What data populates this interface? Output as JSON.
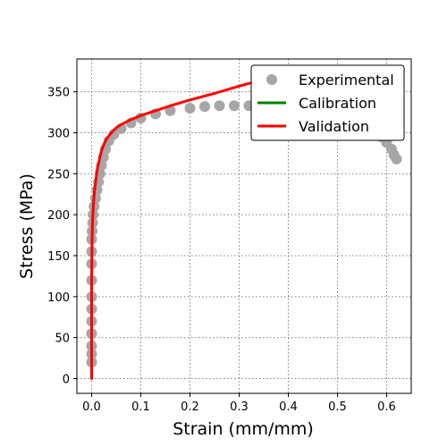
{
  "chart_data": {
    "type": "line",
    "title": "",
    "xlabel": "Strain (mm/mm)",
    "ylabel": "Stress (MPa)",
    "xlim": [
      -0.03,
      0.65
    ],
    "ylim": [
      -18,
      390
    ],
    "xticks": [
      0.0,
      0.1,
      0.2,
      0.3,
      0.4,
      0.5,
      0.6
    ],
    "xtick_labels": [
      "0.0",
      "0.1",
      "0.2",
      "0.3",
      "0.4",
      "0.5",
      "0.6"
    ],
    "yticks": [
      0,
      50,
      100,
      150,
      200,
      250,
      300,
      350
    ],
    "ytick_labels": [
      "0",
      "50",
      "100",
      "150",
      "200",
      "250",
      "300",
      "350"
    ],
    "grid": true,
    "legend_position": "top-right",
    "series": [
      {
        "name": "Experimental",
        "kind": "scatter",
        "color": "#a6a6a6",
        "x": [
          0.0,
          0.0,
          0.0,
          0.0,
          0.0,
          0.0,
          0.0,
          0.0,
          0.0,
          0.0,
          0.0,
          0.001,
          0.002,
          0.003,
          0.005,
          0.008,
          0.011,
          0.014,
          0.017,
          0.02,
          0.024,
          0.028,
          0.035,
          0.045,
          0.06,
          0.08,
          0.1,
          0.13,
          0.16,
          0.2,
          0.23,
          0.26,
          0.29,
          0.32,
          0.35,
          0.38,
          0.42,
          0.46,
          0.5,
          0.54,
          0.57,
          0.59,
          0.6,
          0.61,
          0.615,
          0.62
        ],
        "y": [
          20,
          30,
          40,
          55,
          70,
          85,
          100,
          120,
          140,
          155,
          170,
          180,
          190,
          200,
          210,
          220,
          230,
          240,
          250,
          260,
          270,
          280,
          290,
          298,
          305,
          312,
          318,
          323,
          327,
          330,
          332,
          333,
          333,
          333,
          332,
          331,
          330,
          328,
          325,
          318,
          305,
          295,
          288,
          280,
          273,
          268
        ]
      },
      {
        "name": "Calibration",
        "kind": "line",
        "color": "#008000",
        "x": [],
        "y": []
      },
      {
        "name": "Validation",
        "kind": "line",
        "color": "#ff0000",
        "x": [
          0.0,
          0.0,
          0.0,
          0.001,
          0.002,
          0.004,
          0.006,
          0.009,
          0.012,
          0.016,
          0.02,
          0.025,
          0.03,
          0.04,
          0.05,
          0.06,
          0.08,
          0.1,
          0.13,
          0.16,
          0.2,
          0.25,
          0.3,
          0.35,
          0.38
        ],
        "y": [
          0,
          60,
          120,
          170,
          195,
          215,
          230,
          245,
          257,
          268,
          278,
          286,
          292,
          300,
          306,
          310,
          316,
          321,
          327,
          333,
          340,
          348,
          357,
          365,
          370
        ]
      }
    ]
  }
}
